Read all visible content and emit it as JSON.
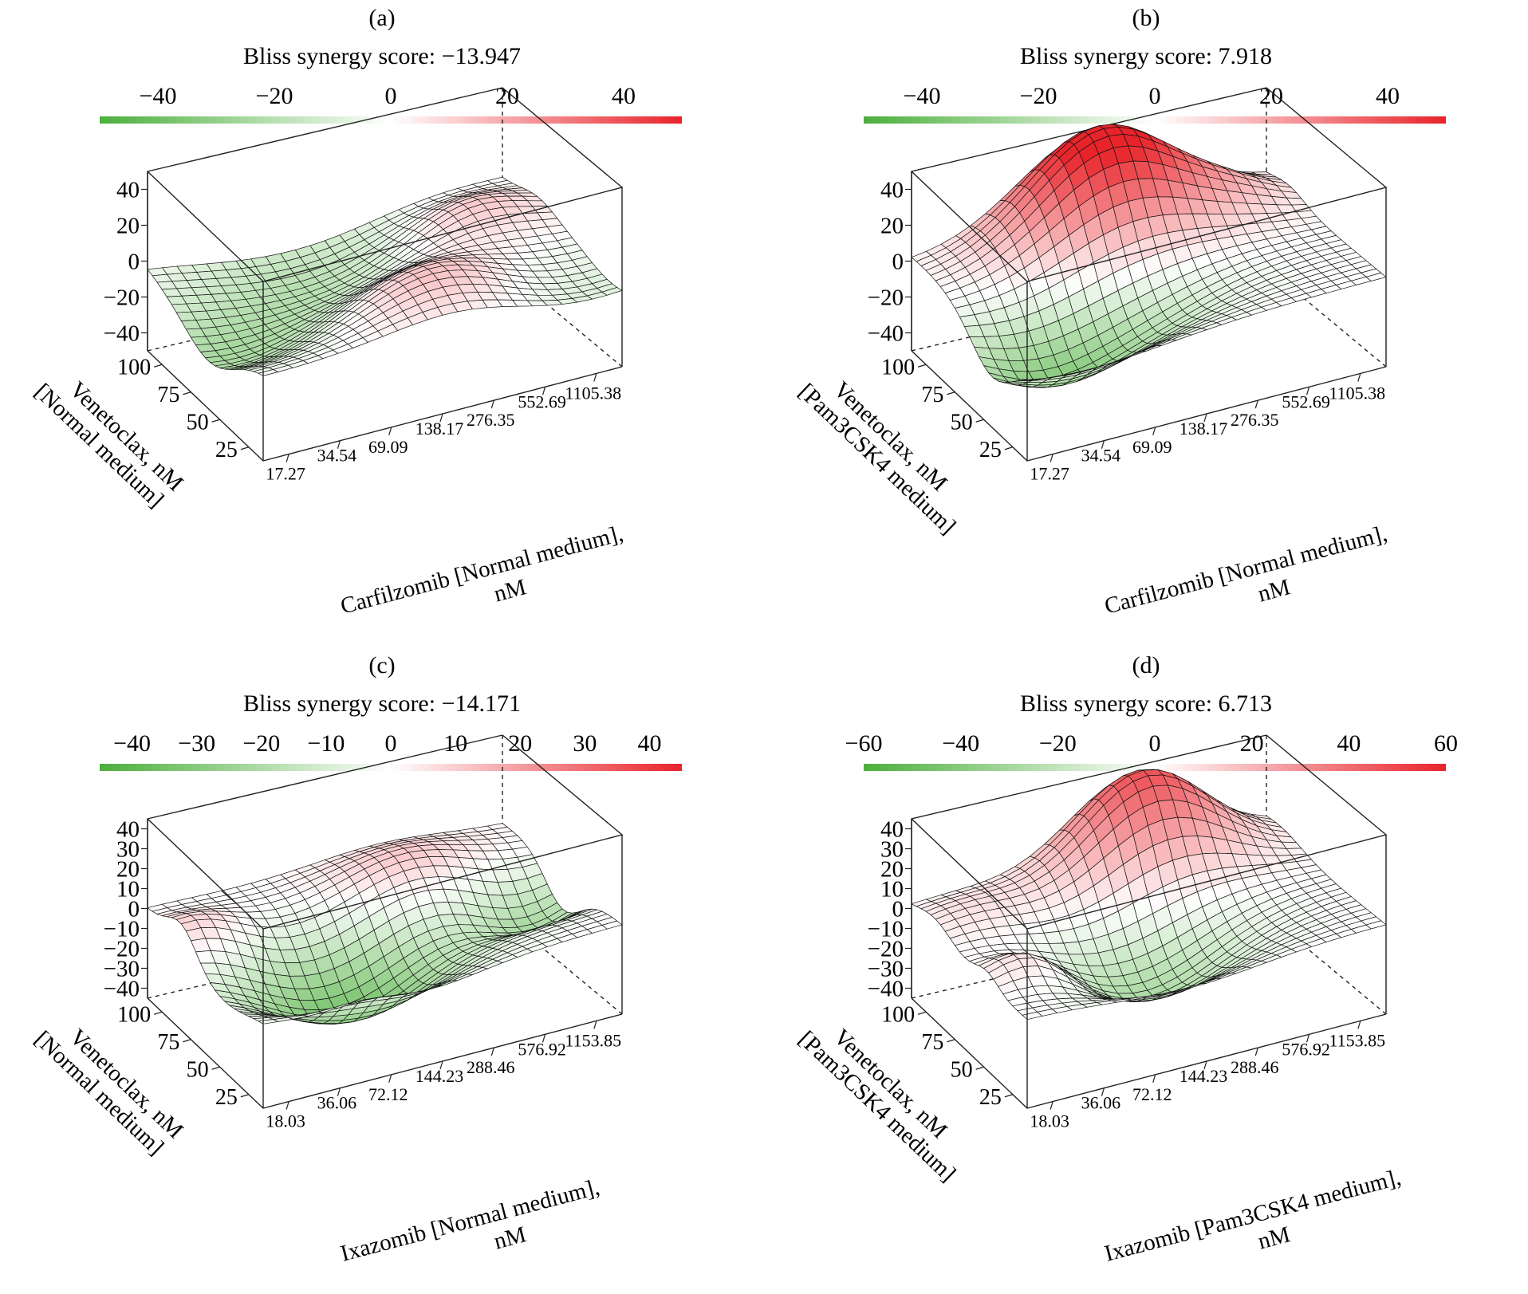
{
  "chart_data": [
    {
      "type": "surface3d",
      "panel_label": "(a)",
      "title": "Bliss synergy score: −13.947",
      "colorbar": {
        "ticks": [
          "−40",
          "−20",
          "0",
          "20",
          "40"
        ],
        "range": [
          -50,
          50
        ],
        "colors": {
          "low": "#4caf3c",
          "mid": "#ffffff",
          "high": "#e8232a"
        }
      },
      "zlim": [
        -50,
        50
      ],
      "zticks": [
        "40",
        "20",
        "0",
        "−20",
        "−40"
      ],
      "y_ticks": [
        "100",
        "75",
        "50",
        "25"
      ],
      "x_ticks": [
        "17.27",
        "34.54",
        "69.09",
        "138.17",
        "276.35",
        "552.69",
        "1105.38"
      ],
      "xlabel_lines": [
        "Carfilzomib [Normal medium],",
        "nM"
      ],
      "ylabel_lines": [
        "Venetoclax, nM",
        "[Normal medium]"
      ],
      "surface_features": [
        {
          "x": 0.05,
          "y": 0.45,
          "height": -22,
          "spread": 0.22
        },
        {
          "x": 0.55,
          "y": 0.25,
          "height": 18,
          "spread": 0.18
        },
        {
          "x": 0.8,
          "y": 0.7,
          "height": 16,
          "spread": 0.15
        },
        {
          "x": 0.4,
          "y": 0.8,
          "height": -18,
          "spread": 0.25
        },
        {
          "x": 0.9,
          "y": 0.1,
          "height": -10,
          "spread": 0.2
        }
      ]
    },
    {
      "type": "surface3d",
      "panel_label": "(b)",
      "title": "Bliss synergy score: 7.918",
      "colorbar": {
        "ticks": [
          "−40",
          "−20",
          "0",
          "20",
          "40"
        ],
        "range": [
          -50,
          50
        ],
        "colors": {
          "low": "#4caf3c",
          "mid": "#ffffff",
          "high": "#e8232a"
        }
      },
      "zlim": [
        -50,
        50
      ],
      "zticks": [
        "40",
        "20",
        "0",
        "−20",
        "−40"
      ],
      "y_ticks": [
        "100",
        "75",
        "50",
        "25"
      ],
      "x_ticks": [
        "17.27",
        "34.54",
        "69.09",
        "138.17",
        "276.35",
        "552.69",
        "1105.38"
      ],
      "xlabel_lines": [
        "Carfilzomib [Normal medium],",
        "nM"
      ],
      "ylabel_lines": [
        "Venetoclax, nM",
        "[Pam3CSK4 medium]"
      ],
      "surface_features": [
        {
          "x": 0.5,
          "y": 0.88,
          "height": 58,
          "spread": 0.2
        },
        {
          "x": 0.15,
          "y": 0.3,
          "height": -30,
          "spread": 0.18
        },
        {
          "x": 0.45,
          "y": 0.35,
          "height": -14,
          "spread": 0.18
        },
        {
          "x": 0.85,
          "y": 0.8,
          "height": 8,
          "spread": 0.12
        }
      ]
    },
    {
      "type": "surface3d",
      "panel_label": "(c)",
      "title": "Bliss synergy score: −14.171",
      "colorbar": {
        "ticks": [
          "−40",
          "−30",
          "−20",
          "−10",
          "0",
          "10",
          "20",
          "30",
          "40"
        ],
        "range": [
          -45,
          45
        ],
        "colors": {
          "low": "#4caf3c",
          "mid": "#ffffff",
          "high": "#e8232a"
        }
      },
      "zlim": [
        -45,
        45
      ],
      "zticks": [
        "40",
        "30",
        "20",
        "10",
        "0",
        "−10",
        "−20",
        "−30",
        "−40"
      ],
      "y_ticks": [
        "100",
        "75",
        "50",
        "25"
      ],
      "x_ticks": [
        "18.03",
        "36.06",
        "72.12",
        "144.23",
        "288.46",
        "576.92",
        "1153.85"
      ],
      "xlabel_lines": [
        "Ixazomib [Normal medium],",
        "nM"
      ],
      "ylabel_lines": [
        "Venetoclax, nM",
        "[Normal medium]"
      ],
      "surface_features": [
        {
          "x": 0.05,
          "y": 0.7,
          "height": 12,
          "spread": 0.12
        },
        {
          "x": 0.35,
          "y": 0.35,
          "height": -35,
          "spread": 0.22
        },
        {
          "x": 0.65,
          "y": 0.75,
          "height": 14,
          "spread": 0.18
        },
        {
          "x": 0.3,
          "y": 0.05,
          "height": 6,
          "spread": 0.1
        },
        {
          "x": 0.9,
          "y": 0.5,
          "height": -22,
          "spread": 0.15
        }
      ]
    },
    {
      "type": "surface3d",
      "panel_label": "(d)",
      "title": "Bliss synergy score: 6.713",
      "colorbar": {
        "ticks": [
          "−60",
          "−40",
          "−20",
          "0",
          "20",
          "40",
          "60"
        ],
        "range": [
          -60,
          60
        ],
        "colors": {
          "low": "#4caf3c",
          "mid": "#ffffff",
          "high": "#e8232a"
        }
      },
      "zlim": [
        -45,
        45
      ],
      "zticks": [
        "40",
        "30",
        "20",
        "10",
        "0",
        "−10",
        "−20",
        "−30",
        "−40"
      ],
      "y_ticks": [
        "100",
        "75",
        "50",
        "25"
      ],
      "x_ticks": [
        "18.03",
        "36.06",
        "72.12",
        "144.23",
        "288.46",
        "576.92",
        "1153.85"
      ],
      "xlabel_lines": [
        "Ixazomib [Pam3CSK4 medium],",
        "nM"
      ],
      "ylabel_lines": [
        "Venetoclax, nM",
        "[Pam3CSK4 medium]"
      ],
      "surface_features": [
        {
          "x": 0.62,
          "y": 0.9,
          "height": 48,
          "spread": 0.18
        },
        {
          "x": 0.45,
          "y": 0.35,
          "height": -28,
          "spread": 0.2
        },
        {
          "x": 0.12,
          "y": 0.35,
          "height": 14,
          "spread": 0.1
        },
        {
          "x": 0.1,
          "y": 0.8,
          "height": 8,
          "spread": 0.14
        }
      ]
    }
  ]
}
